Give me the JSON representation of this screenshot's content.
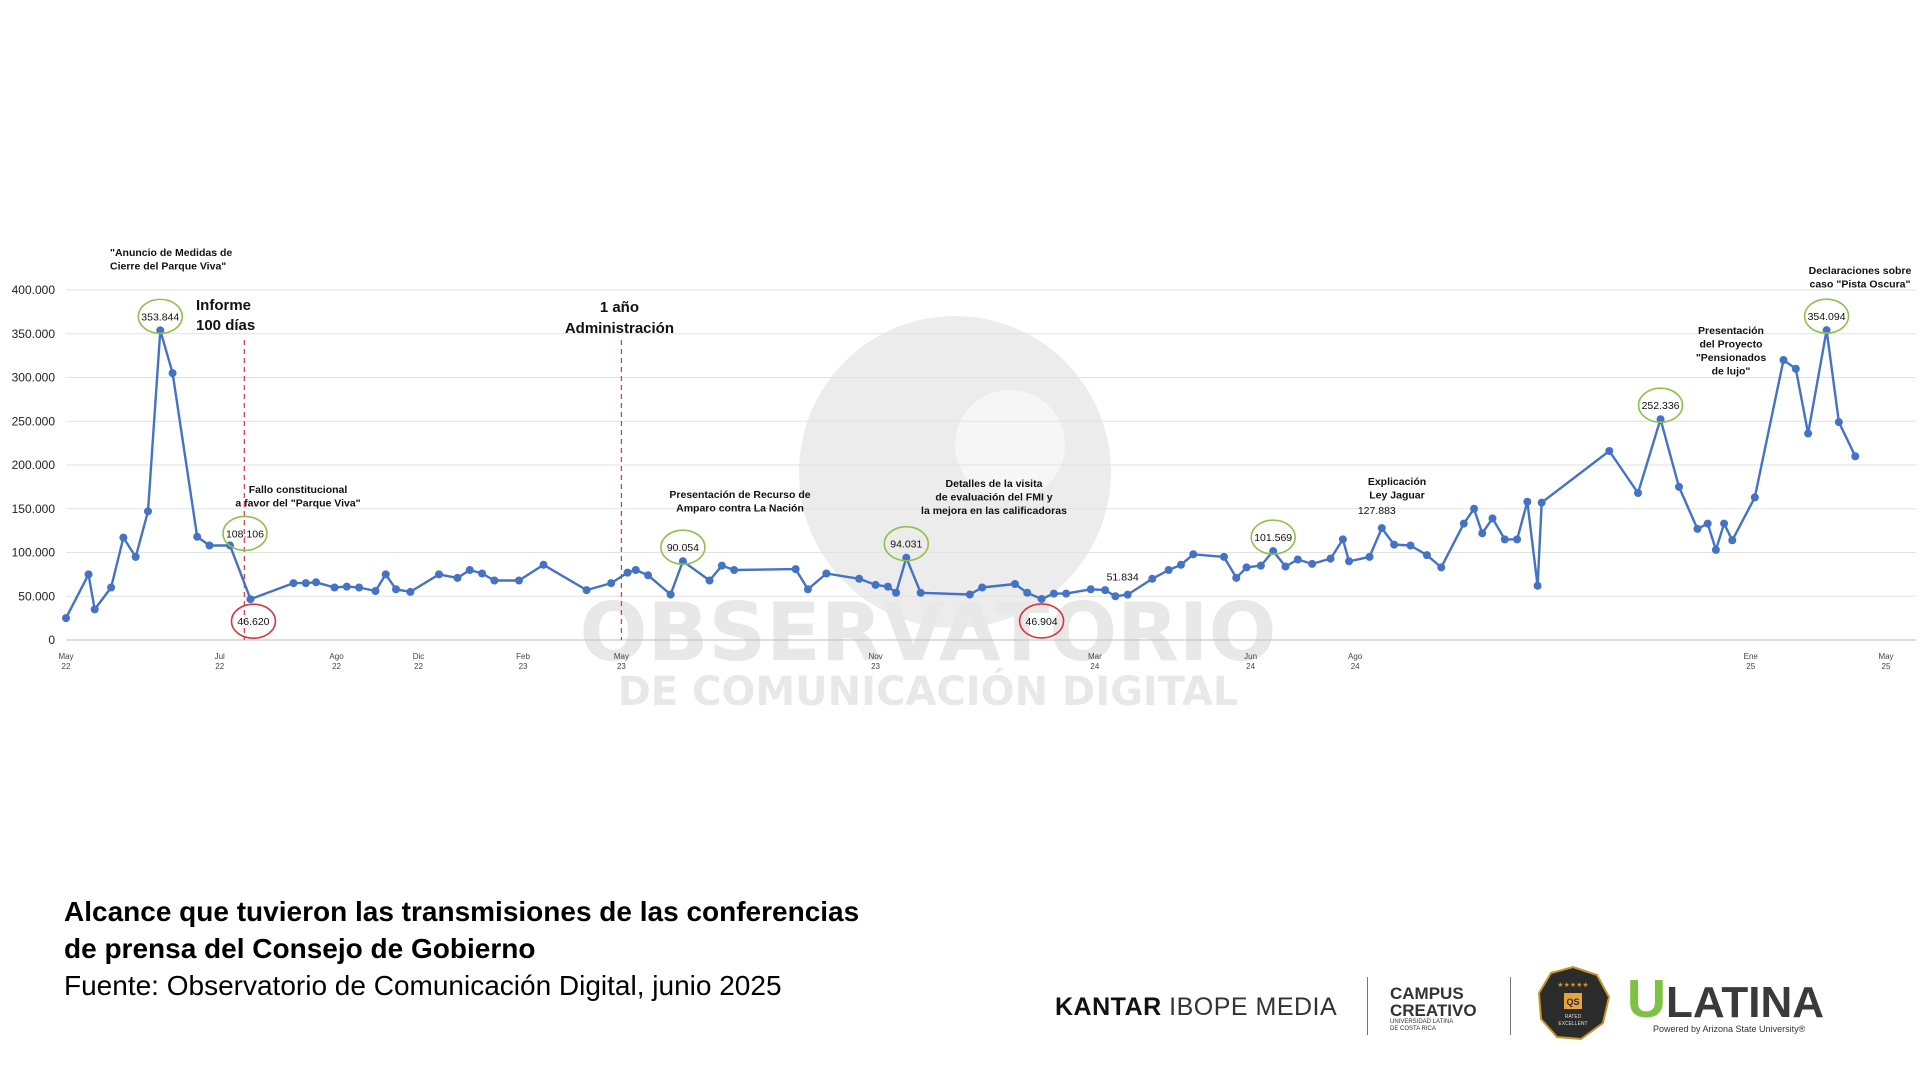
{
  "chart_data": {
    "type": "line",
    "ylim": [
      0,
      400000
    ],
    "yticks": [
      "0",
      "50.000",
      "100.000",
      "150.000",
      "200.000",
      "250.000",
      "300.000",
      "350.000",
      "400.000"
    ],
    "x_ticks": [
      {
        "month": "May",
        "year": "22",
        "at": "2022-05-01"
      },
      {
        "month": "Jul",
        "year": "22",
        "at": "2022-07-15"
      },
      {
        "month": "Ago",
        "year": "22",
        "at": "2022-09-10"
      },
      {
        "month": "Dic",
        "year": "22",
        "at": "2022-10-20"
      },
      {
        "month": "Feb",
        "year": "23",
        "at": "2022-12-10"
      },
      {
        "month": "May",
        "year": "23",
        "at": "2023-01-27"
      },
      {
        "month": "Nov",
        "year": "23",
        "at": "2023-05-31"
      },
      {
        "month": "Mar",
        "year": "24",
        "at": "2023-09-15"
      },
      {
        "month": "Jun",
        "year": "24",
        "at": "2023-11-30"
      },
      {
        "month": "Ago",
        "year": "24",
        "at": "2024-01-20"
      },
      {
        "month": "Ene",
        "year": "25",
        "at": "2024-07-31"
      },
      {
        "month": "May",
        "year": "25",
        "at": "2024-10-05"
      }
    ],
    "series": [
      {
        "color": "#4472c4",
        "points": [
          [
            "2022-05-01",
            25000
          ],
          [
            "2022-05-12",
            75000
          ],
          [
            "2022-05-15",
            35000
          ],
          [
            "2022-05-23",
            60000
          ],
          [
            "2022-05-29",
            117000
          ],
          [
            "2022-06-04",
            95000
          ],
          [
            "2022-06-10",
            147000
          ],
          [
            "2022-06-16",
            353844
          ],
          [
            "2022-06-22",
            305000
          ],
          [
            "2022-07-04",
            118000
          ],
          [
            "2022-07-10",
            108000
          ],
          [
            "2022-07-20",
            108106
          ],
          [
            "2022-07-30",
            46620
          ],
          [
            "2022-08-20",
            65000
          ],
          [
            "2022-08-26",
            65000
          ],
          [
            "2022-08-31",
            66000
          ],
          [
            "2022-09-09",
            60000
          ],
          [
            "2022-09-15",
            61000
          ],
          [
            "2022-09-21",
            60000
          ],
          [
            "2022-09-29",
            56000
          ],
          [
            "2022-10-04",
            75000
          ],
          [
            "2022-10-09",
            58000
          ],
          [
            "2022-10-16",
            55000
          ],
          [
            "2022-10-30",
            75000
          ],
          [
            "2022-11-08",
            71000
          ],
          [
            "2022-11-14",
            80000
          ],
          [
            "2022-11-20",
            76000
          ],
          [
            "2022-11-26",
            68000
          ],
          [
            "2022-12-08",
            68000
          ],
          [
            "2022-12-20",
            86000
          ],
          [
            "2023-01-10",
            57000
          ],
          [
            "2023-01-22",
            65000
          ],
          [
            "2023-01-30",
            77000
          ],
          [
            "2023-02-03",
            80000
          ],
          [
            "2023-02-09",
            74000
          ],
          [
            "2023-02-20",
            52000
          ],
          [
            "2023-02-26",
            90054
          ],
          [
            "2023-03-11",
            68000
          ],
          [
            "2023-03-17",
            85000
          ],
          [
            "2023-03-23",
            80000
          ],
          [
            "2023-04-22",
            81000
          ],
          [
            "2023-04-28",
            58000
          ],
          [
            "2023-05-07",
            76000
          ],
          [
            "2023-05-23",
            70000
          ],
          [
            "2023-05-31",
            63000
          ],
          [
            "2023-06-06",
            61000
          ],
          [
            "2023-06-10",
            54000
          ],
          [
            "2023-06-15",
            94031
          ],
          [
            "2023-06-22",
            54000
          ],
          [
            "2023-07-16",
            52000
          ],
          [
            "2023-07-22",
            60000
          ],
          [
            "2023-08-07",
            64000
          ],
          [
            "2023-08-13",
            54000
          ],
          [
            "2023-08-20",
            46904
          ],
          [
            "2023-08-26",
            53000
          ],
          [
            "2023-09-01",
            53000
          ],
          [
            "2023-09-13",
            58000
          ],
          [
            "2023-09-20",
            57000
          ],
          [
            "2023-09-25",
            50000
          ],
          [
            "2023-10-01",
            51834
          ],
          [
            "2023-10-13",
            70000
          ],
          [
            "2023-10-21",
            80000
          ],
          [
            "2023-10-27",
            86000
          ],
          [
            "2023-11-02",
            98000
          ],
          [
            "2023-11-17",
            95000
          ],
          [
            "2023-11-23",
            71000
          ],
          [
            "2023-11-28",
            83000
          ],
          [
            "2023-12-05",
            85000
          ],
          [
            "2023-12-11",
            101569
          ],
          [
            "2023-12-17",
            84000
          ],
          [
            "2023-12-23",
            92000
          ],
          [
            "2023-12-30",
            87000
          ],
          [
            "2024-01-08",
            93000
          ],
          [
            "2024-01-14",
            115000
          ],
          [
            "2024-01-17",
            90000
          ],
          [
            "2024-01-27",
            95000
          ],
          [
            "2024-02-02",
            127883
          ],
          [
            "2024-02-08",
            109000
          ],
          [
            "2024-02-16",
            108000
          ],
          [
            "2024-02-24",
            97000
          ],
          [
            "2024-03-02",
            83000
          ],
          [
            "2024-03-13",
            133000
          ],
          [
            "2024-03-18",
            150000
          ],
          [
            "2024-03-22",
            122000
          ],
          [
            "2024-03-27",
            139000
          ],
          [
            "2024-04-02",
            115000
          ],
          [
            "2024-04-08",
            115000
          ],
          [
            "2024-04-13",
            158000
          ],
          [
            "2024-04-18",
            62000
          ],
          [
            "2024-04-20",
            157000
          ],
          [
            "2024-05-23",
            216000
          ],
          [
            "2024-06-06",
            168000
          ],
          [
            "2024-06-17",
            252336
          ],
          [
            "2024-06-26",
            175000
          ],
          [
            "2024-07-05",
            127000
          ],
          [
            "2024-07-10",
            133000
          ],
          [
            "2024-07-14",
            103000
          ],
          [
            "2024-07-18",
            133000
          ],
          [
            "2024-07-22",
            114000
          ],
          [
            "2024-08-02",
            163000
          ],
          [
            "2024-08-16",
            320000
          ],
          [
            "2024-08-22",
            310000
          ],
          [
            "2024-08-28",
            236000
          ],
          [
            "2024-09-06",
            354094
          ],
          [
            "2024-09-12",
            249000
          ],
          [
            "2024-09-20",
            210000
          ]
        ]
      }
    ],
    "highlights": [
      {
        "date": "2022-06-16",
        "value": 353844,
        "text": "353.844",
        "ring": "#8dc14a"
      },
      {
        "date": "2022-07-20",
        "value": 108106,
        "text": "108.106",
        "ring": "#8dc14a"
      },
      {
        "date": "2022-07-30",
        "value": 46620,
        "text": "46.620",
        "ring": "#d9363e"
      },
      {
        "date": "2023-02-26",
        "value": 90054,
        "text": "90.054",
        "ring": "#8dc14a"
      },
      {
        "date": "2023-06-15",
        "value": 94031,
        "text": "94.031",
        "ring": "#8dc14a"
      },
      {
        "date": "2023-08-20",
        "value": 46904,
        "text": "46.904",
        "ring": "#d9363e"
      },
      {
        "date": "2023-12-11",
        "value": 101569,
        "text": "101.569",
        "ring": "#8dc14a"
      },
      {
        "date": "2024-06-17",
        "value": 252336,
        "text": "252.336",
        "ring": "#8dc14a"
      },
      {
        "date": "2024-09-06",
        "value": 354094,
        "text": "354.094",
        "ring": "#8dc14a"
      }
    ],
    "plain_labels": [
      {
        "date": "2023-10-01",
        "value": 51834,
        "text": "51.834"
      },
      {
        "date": "2024-02-02",
        "value": 127883,
        "text": "127.883"
      }
    ],
    "reference_lines": [
      {
        "date": "2022-07-27",
        "label_lines": [
          "Informe",
          "100 días"
        ]
      },
      {
        "date": "2023-01-27",
        "label_lines": [
          "1 año",
          "Administración"
        ]
      }
    ],
    "annotations": [
      {
        "anchor_date": "2022-06-16",
        "lines": [
          "\"Anuncio de Medidas de",
          "Cierre del Parque Viva\""
        ]
      },
      {
        "anchor_date": "2022-08-10",
        "lines": [
          "Fallo constitucional",
          "a favor del \"Parque Viva\""
        ]
      },
      {
        "anchor_date": "2023-02-26",
        "lines": [
          "Presentación de Recurso de",
          "Amparo contra La Nación"
        ]
      },
      {
        "anchor_date": "2023-06-15",
        "lines": [
          "Detalles de la visita",
          "de evaluación del FMI y",
          "la mejora en las calificadoras"
        ]
      },
      {
        "anchor_date": "2023-12-11",
        "lines": [
          "Explicación",
          "Ley Jaguar"
        ]
      },
      {
        "anchor_date": "2024-06-17",
        "lines": [
          "Presentación",
          "del Proyecto",
          "\"Pensionados",
          "de lujo\""
        ]
      },
      {
        "anchor_date": "2024-09-06",
        "lines": [
          "Declaraciones sobre",
          "caso \"Pista Oscura\""
        ]
      }
    ]
  },
  "watermark": {
    "line1": "OBSERVATORIO",
    "line2": "DE COMUNICACIÓN DIGITAL"
  },
  "footer": {
    "title_line1": "Alcance que tuvieron las transmisiones de las conferencias",
    "title_line2": "de prensa del Consejo de Gobierno",
    "source": "Fuente: Observatorio de Comunicación Digital, junio 2025"
  },
  "logos": {
    "kantar_bold": "KANTAR",
    "kantar_light": "IBOPE MEDIA",
    "campus_line1": "CAMPUS",
    "campus_line2": "CREATIVO",
    "campus_sub1": "UNIVERSIDAD LATINA",
    "campus_sub2": "DE COSTA RICA",
    "badge_stars": "★★★★★",
    "badge_mark": "QS",
    "badge_text1": "RATED",
    "badge_text2": "EXCELLENT",
    "ulatina_u": "U",
    "ulatina_rest": "LATINA",
    "ulatina_powered": "Powered by Arizona State University®"
  }
}
